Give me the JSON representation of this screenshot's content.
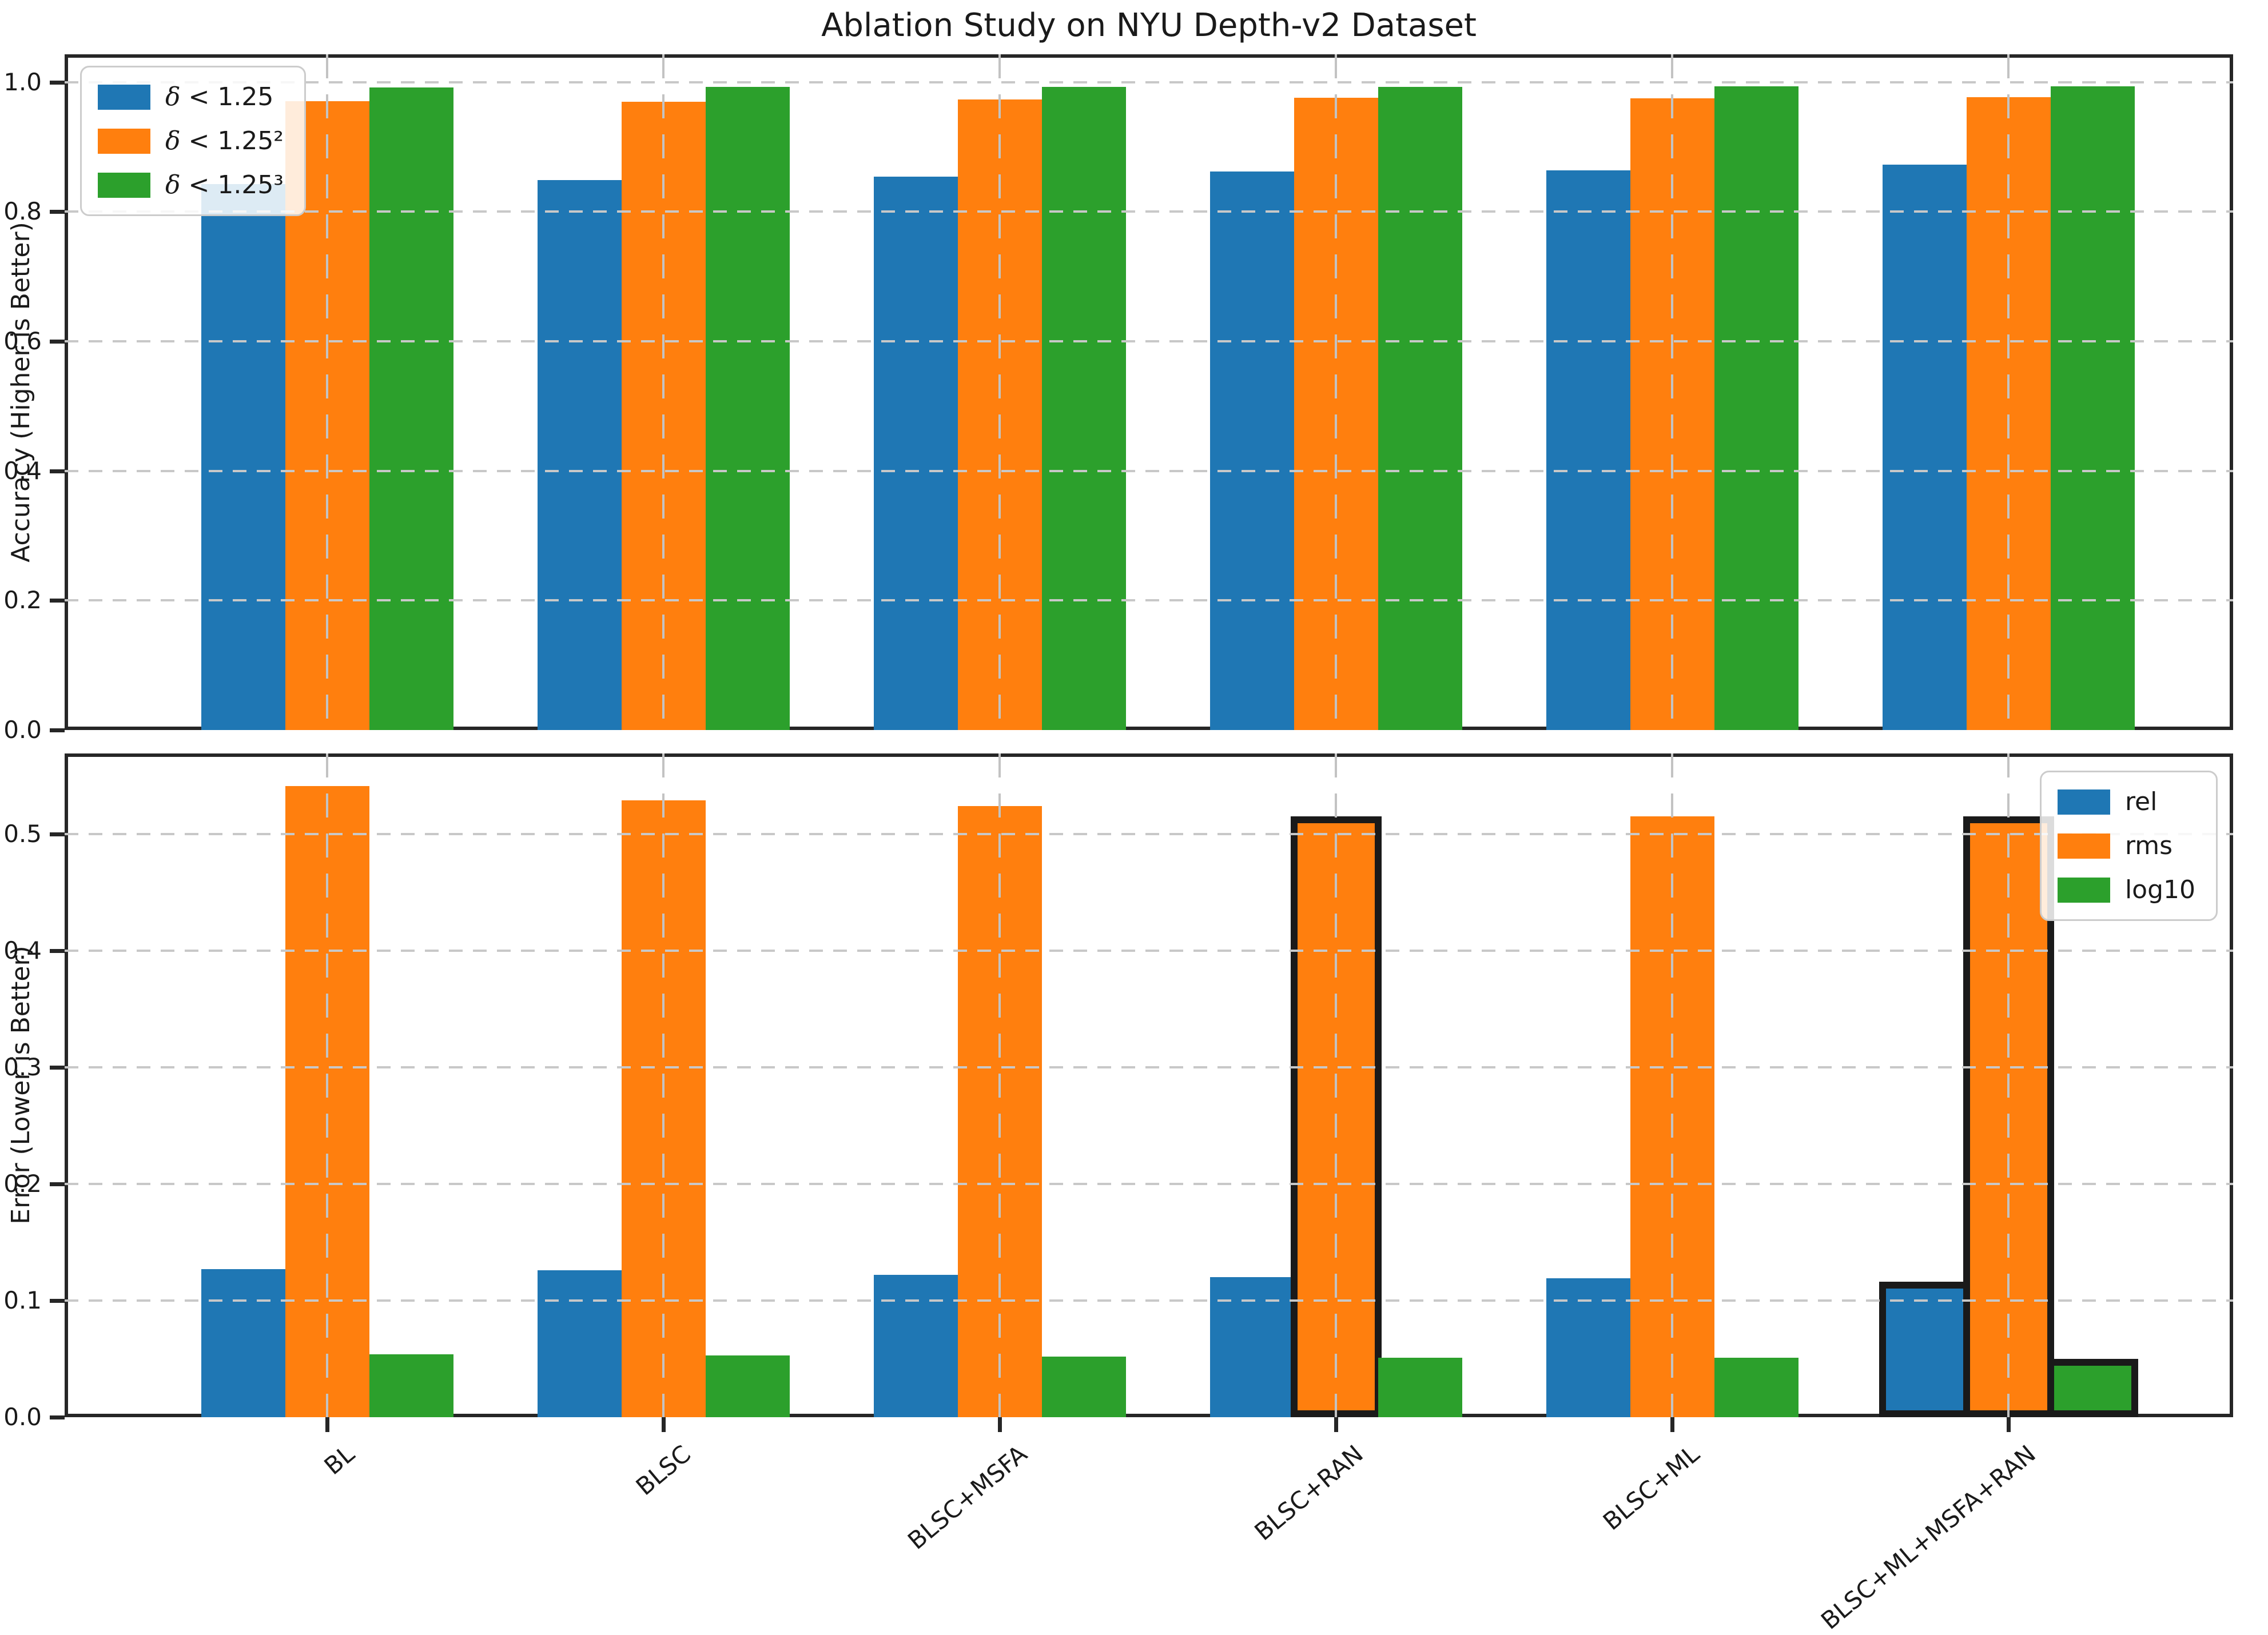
{
  "figure_title": "Ablation Study on NYU Depth-v2 Dataset",
  "categories": [
    "BL",
    "BLSC",
    "BLSC+MSFA",
    "BLSC+RAN",
    "BLSC+ML",
    "BLSC+ML+MSFA+RAN"
  ],
  "colors": {
    "blue": "#1f77b4",
    "orange": "#ff7f0e",
    "green": "#2ca02c",
    "highlight_edge": "#1a1a1a",
    "grid": "#c8c8c8"
  },
  "chart_data": [
    {
      "type": "bar",
      "title": "Ablation Study on NYU Depth-v2 Dataset",
      "ylabel": "Accuracy (Higher is Better)",
      "xlabel": "",
      "categories": [
        "BL",
        "BLSC",
        "BLSC+MSFA",
        "BLSC+RAN",
        "BLSC+ML",
        "BLSC+ML+MSFA+RAN"
      ],
      "series": [
        {
          "name": "δ < 1.25",
          "color": "#1f77b4",
          "values": [
            0.843,
            0.849,
            0.854,
            0.862,
            0.864,
            0.873
          ]
        },
        {
          "name": "δ < 1.25²",
          "color": "#ff7f0e",
          "values": [
            0.971,
            0.97,
            0.973,
            0.976,
            0.975,
            0.977
          ]
        },
        {
          "name": "δ < 1.25³",
          "color": "#2ca02c",
          "values": [
            0.992,
            0.993,
            0.993,
            0.993,
            0.994,
            0.994
          ]
        }
      ],
      "ylim": [
        0,
        1.043
      ],
      "yticks": [
        0.0,
        0.2,
        0.4,
        0.6,
        0.8,
        1.0
      ],
      "ytick_labels": [
        "0.0",
        "0.2",
        "0.4",
        "0.6",
        "0.8",
        "1.0"
      ],
      "grid": true,
      "legend_position": "upper left",
      "show_xtick_labels": false,
      "highlighted_bars": []
    },
    {
      "type": "bar",
      "title": "",
      "ylabel": "Error (Lower is Better)",
      "xlabel": "",
      "categories": [
        "BL",
        "BLSC",
        "BLSC+MSFA",
        "BLSC+RAN",
        "BLSC+ML",
        "BLSC+ML+MSFA+RAN"
      ],
      "series": [
        {
          "name": "rel",
          "color": "#1f77b4",
          "values": [
            0.127,
            0.126,
            0.122,
            0.12,
            0.119,
            0.113
          ]
        },
        {
          "name": "rms",
          "color": "#ff7f0e",
          "values": [
            0.541,
            0.529,
            0.524,
            0.512,
            0.515,
            0.512
          ]
        },
        {
          "name": "log10",
          "color": "#2ca02c",
          "values": [
            0.054,
            0.053,
            0.052,
            0.051,
            0.051,
            0.047
          ]
        }
      ],
      "ylim": [
        0,
        0.569
      ],
      "yticks": [
        0.0,
        0.1,
        0.2,
        0.3,
        0.4,
        0.5
      ],
      "ytick_labels": [
        "0.0",
        "0.1",
        "0.2",
        "0.3",
        "0.4",
        "0.5"
      ],
      "grid": true,
      "legend_position": "upper right",
      "show_xtick_labels": true,
      "xtick_rotation": 40,
      "highlighted_bars": [
        {
          "category": "BLSC+RAN",
          "series": "rms"
        },
        {
          "category": "BLSC+ML+MSFA+RAN",
          "series": "rel"
        },
        {
          "category": "BLSC+ML+MSFA+RAN",
          "series": "rms"
        },
        {
          "category": "BLSC+ML+MSFA+RAN",
          "series": "log10"
        }
      ]
    }
  ]
}
